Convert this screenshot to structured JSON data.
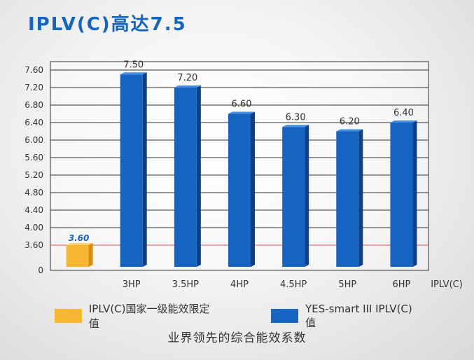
{
  "title": "IPLV(C)高达7.5",
  "footer": "业界领先的综合能效系数",
  "legend": {
    "limit": "IPLV(C)国家一级能效限定值",
    "series": "YES-smart III IPLV(C)值"
  },
  "colors": {
    "limit": "#f7b731",
    "series": "#1565c0",
    "limit_line": "#e05555"
  },
  "chart_data": {
    "type": "bar",
    "title": "IPLV(C)高达7.5",
    "x_axis_label": "IPLV(C)",
    "categories": [
      "",
      "3HP",
      "3.5HP",
      "4HP",
      "4.5HP",
      "5HP",
      "6HP"
    ],
    "yticks": [
      "0",
      "3.60",
      "4.00",
      "4.40",
      "4.80",
      "5.20",
      "5.60",
      "6.00",
      "6.40",
      "6.80",
      "7.20",
      "7.60"
    ],
    "series": [
      {
        "name": "IPLV(C)国家一级能效限定值",
        "values": [
          3.6,
          null,
          null,
          null,
          null,
          null,
          null
        ],
        "labels": [
          "3.60",
          "",
          "",
          "",
          "",
          "",
          ""
        ]
      },
      {
        "name": "YES-smart III IPLV(C)值",
        "values": [
          null,
          7.5,
          7.2,
          6.6,
          6.3,
          6.2,
          6.4
        ],
        "labels": [
          "",
          "7.50",
          "7.20",
          "6.60",
          "6.30",
          "6.20",
          "6.40"
        ]
      }
    ],
    "reference_line": 3.6,
    "grid": true,
    "axis_break": "0 to 3.60"
  }
}
